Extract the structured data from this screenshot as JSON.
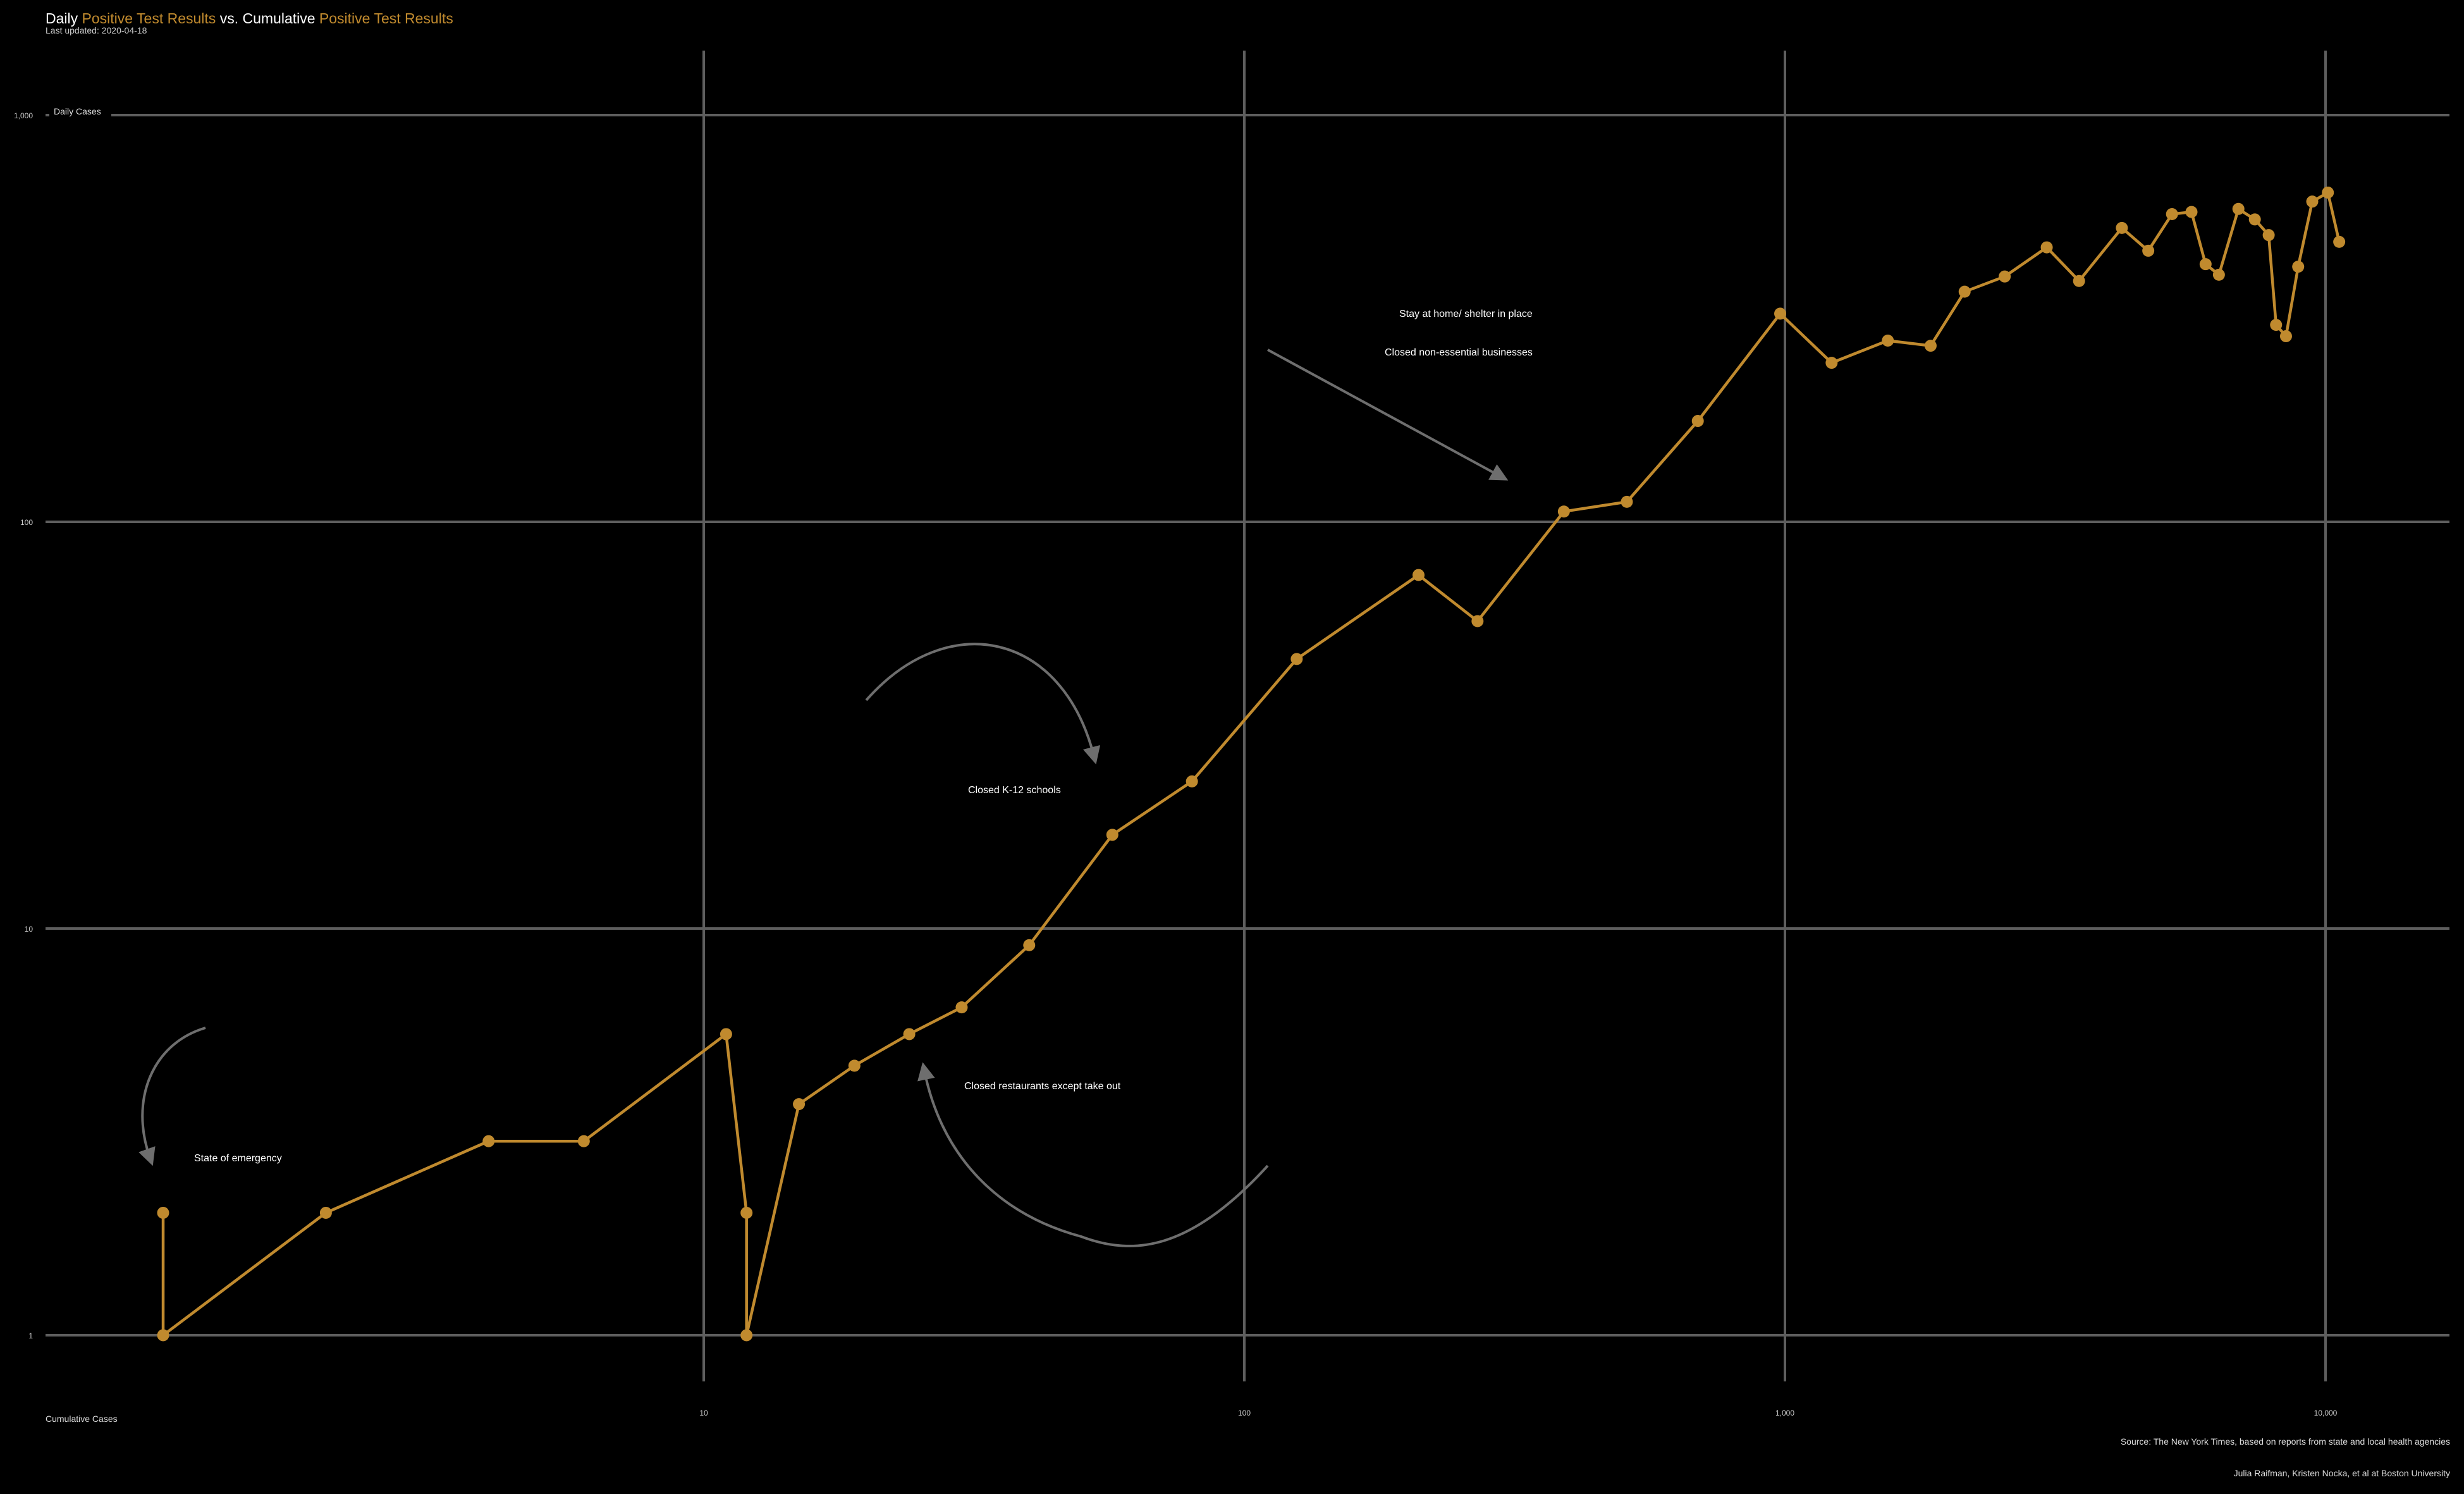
{
  "title": {
    "w1": "Daily",
    "w2": "Positive",
    "w3": "Test Results",
    "w4": "vs. Cumulative",
    "w5": "Positive",
    "w6": "Test Results"
  },
  "subtitle": "Last updated: 2020-04-18",
  "caption_source": "Source: The New York Times, based on reports from state and local health agencies",
  "caption_authors": "Julia Raifman,  Kristen Nocka, et al at Boston University",
  "colors": {
    "background": "#000000",
    "accent": "#c08a2e",
    "grid": "#5e5e5e",
    "arrow": "#6e6e6e",
    "text": "#ffffff"
  },
  "chart_data": {
    "type": "line",
    "x_scale": "log",
    "y_scale": "log",
    "xlabel": "Cumulative Cases",
    "ylabel": "Daily Cases",
    "xlim": [
      1,
      15000
    ],
    "ylim": [
      0.7,
      1400
    ],
    "x_ticks": [
      {
        "value": 10,
        "label": "10"
      },
      {
        "value": 100,
        "label": "100"
      },
      {
        "value": 1000,
        "label": "1,000"
      },
      {
        "value": 10000,
        "label": "10,000"
      }
    ],
    "y_ticks": [
      {
        "value": 1,
        "label": "1"
      },
      {
        "value": 10,
        "label": "10"
      },
      {
        "value": 100,
        "label": "100"
      },
      {
        "value": 1000,
        "label": "1,000"
      }
    ],
    "grid": true,
    "series": [
      {
        "color": "#c08a2e",
        "points": [
          {
            "x": 1,
            "y": 2
          },
          {
            "x": 1,
            "y": 1
          },
          {
            "x": 2,
            "y": 2
          },
          {
            "x": 4,
            "y": 3
          },
          {
            "x": 6,
            "y": 3
          },
          {
            "x": 11,
            "y": 5.5
          },
          {
            "x": 12,
            "y": 2
          },
          {
            "x": 12,
            "y": 1
          },
          {
            "x": 15,
            "y": 3.7
          },
          {
            "x": 19,
            "y": 4.6
          },
          {
            "x": 24,
            "y": 5.5
          },
          {
            "x": 30,
            "y": 6.4
          },
          {
            "x": 40,
            "y": 9.1
          },
          {
            "x": 57,
            "y": 17
          },
          {
            "x": 80,
            "y": 23
          },
          {
            "x": 125,
            "y": 46
          },
          {
            "x": 210,
            "y": 74
          },
          {
            "x": 270,
            "y": 57
          },
          {
            "x": 390,
            "y": 106
          },
          {
            "x": 510,
            "y": 112
          },
          {
            "x": 690,
            "y": 177
          },
          {
            "x": 980,
            "y": 325
          },
          {
            "x": 1220,
            "y": 246
          },
          {
            "x": 1550,
            "y": 279
          },
          {
            "x": 1860,
            "y": 271
          },
          {
            "x": 2150,
            "y": 368
          },
          {
            "x": 2550,
            "y": 401
          },
          {
            "x": 3050,
            "y": 473
          },
          {
            "x": 3500,
            "y": 391
          },
          {
            "x": 4200,
            "y": 528
          },
          {
            "x": 4700,
            "y": 464
          },
          {
            "x": 5200,
            "y": 571
          },
          {
            "x": 5650,
            "y": 578
          },
          {
            "x": 6000,
            "y": 430
          },
          {
            "x": 6350,
            "y": 405
          },
          {
            "x": 6900,
            "y": 588
          },
          {
            "x": 7400,
            "y": 554
          },
          {
            "x": 7850,
            "y": 507
          },
          {
            "x": 8100,
            "y": 305
          },
          {
            "x": 8450,
            "y": 286
          },
          {
            "x": 8900,
            "y": 424
          },
          {
            "x": 9450,
            "y": 613
          },
          {
            "x": 10100,
            "y": 645
          },
          {
            "x": 10600,
            "y": 488
          }
        ]
      }
    ],
    "annotations": [
      {
        "text": "State of emergency"
      },
      {
        "text": "Closed K-12 schools"
      },
      {
        "text": "Closed restaurants except take out"
      },
      {
        "text": "Stay at home/ shelter in place"
      },
      {
        "text": "Closed non-essential businesses"
      }
    ]
  }
}
